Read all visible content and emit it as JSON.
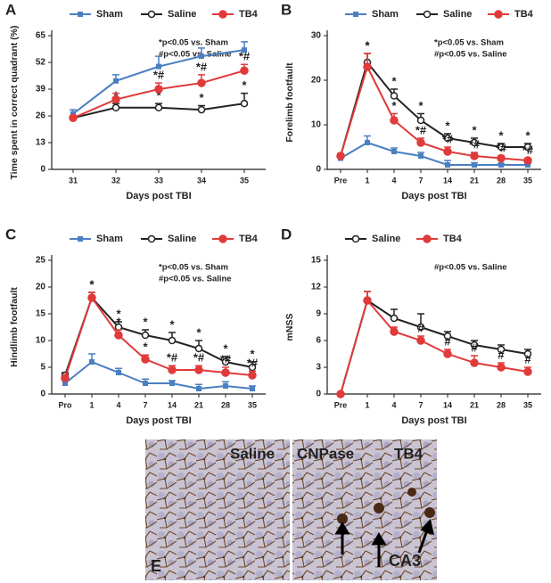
{
  "chart_data": [
    {
      "type": "line",
      "panel": "A",
      "y_label": "Time spent in correct quadrant (%)",
      "x_label": "Days post TBI",
      "categories": [
        "31",
        "32",
        "33",
        "34",
        "35"
      ],
      "ylim": [
        0,
        65
      ],
      "yticks": [
        0,
        13,
        26,
        39,
        52,
        65
      ],
      "notes": [
        "*p<0.05 vs. Sham",
        "#p<0.05 vs. Saline"
      ],
      "series": [
        {
          "name": "Sham",
          "color": "#4a7fc1",
          "marker": "square",
          "values": [
            27,
            43,
            50,
            55,
            58
          ],
          "errors": [
            2,
            3,
            5,
            4,
            4
          ],
          "markers": [
            null,
            null,
            null,
            null,
            null
          ]
        },
        {
          "name": "Saline",
          "color": "#222222",
          "marker": "open-circle",
          "values": [
            25,
            30,
            30,
            29,
            32
          ],
          "errors": [
            1,
            2,
            2,
            2,
            5
          ],
          "markers": [
            null,
            "*",
            "*",
            "*",
            "*"
          ]
        },
        {
          "name": "TB4",
          "color": "#e03a3a",
          "marker": "circle",
          "values": [
            25,
            34,
            39,
            42,
            48
          ],
          "errors": [
            1,
            3,
            3,
            4,
            3
          ],
          "markers": [
            null,
            null,
            "*#",
            "*#",
            "*#"
          ]
        }
      ]
    },
    {
      "type": "line",
      "panel": "B",
      "y_label": "Forelimb footfault",
      "x_label": "Days post TBI",
      "categories": [
        "Pre",
        "1",
        "4",
        "7",
        "14",
        "21",
        "28",
        "35"
      ],
      "ylim": [
        0,
        30
      ],
      "yticks": [
        0,
        10,
        20,
        30
      ],
      "notes": [
        "*p<0.05 vs. Sham",
        "#p<0.05 vs. Saline"
      ],
      "series": [
        {
          "name": "Sham",
          "color": "#4a7fc1",
          "marker": "square",
          "values": [
            2.5,
            6,
            4,
            3,
            1,
            1,
            1,
            1
          ],
          "errors": [
            0.5,
            1.5,
            0.8,
            0.8,
            1,
            0.5,
            0.3,
            0.3
          ],
          "markers": [
            null,
            null,
            null,
            null,
            null,
            null,
            null,
            null
          ]
        },
        {
          "name": "Saline",
          "color": "#222222",
          "marker": "open-circle",
          "values": [
            3,
            24,
            16.5,
            11,
            7,
            6,
            5,
            5
          ],
          "errors": [
            0.5,
            2,
            1.5,
            1.5,
            1,
            1,
            0.8,
            0.8
          ],
          "markers": [
            null,
            "*",
            "*",
            "*",
            "*",
            "*",
            "*",
            "*"
          ]
        },
        {
          "name": "TB4",
          "color": "#e03a3a",
          "marker": "circle",
          "values": [
            3,
            23,
            11,
            6,
            4,
            3,
            2.5,
            2
          ],
          "errors": [
            0.5,
            3,
            1.5,
            1,
            1,
            0.8,
            0.5,
            0.5
          ],
          "markers": [
            null,
            "*",
            "*",
            "*#",
            "*#",
            "*#",
            "*#",
            "*#"
          ]
        }
      ]
    },
    {
      "type": "line",
      "panel": "C",
      "y_label": "Hindlimb footfault",
      "x_label": "Days post TBI",
      "categories": [
        "Pro",
        "1",
        "4",
        "7",
        "14",
        "21",
        "28",
        "35"
      ],
      "ylim": [
        0,
        25
      ],
      "yticks": [
        0,
        5,
        10,
        15,
        20,
        25
      ],
      "notes": [
        "*p<0.05 vs. Sham",
        "#p<0.05 vs. Saline"
      ],
      "series": [
        {
          "name": "Sham",
          "color": "#4a7fc1",
          "marker": "square",
          "values": [
            2,
            6,
            4,
            2,
            2,
            1,
            1.5,
            1
          ],
          "errors": [
            0.5,
            1.5,
            0.8,
            0.8,
            0.5,
            0.8,
            0.8,
            0.5
          ],
          "markers": [
            null,
            null,
            null,
            null,
            null,
            null,
            null,
            null
          ]
        },
        {
          "name": "Saline",
          "color": "#222222",
          "marker": "open-circle",
          "values": [
            3.5,
            18,
            12.5,
            11,
            10,
            8.5,
            6,
            5
          ],
          "errors": [
            0.5,
            1,
            1,
            1,
            1.5,
            1.5,
            1,
            1
          ],
          "markers": [
            null,
            "*",
            "*",
            "*",
            "*",
            "*",
            "*",
            "*"
          ]
        },
        {
          "name": "TB4",
          "color": "#e03a3a",
          "marker": "circle",
          "values": [
            3,
            18,
            11,
            6.5,
            4.5,
            4.5,
            4,
            3.5
          ],
          "errors": [
            0.5,
            1,
            1,
            0.8,
            0.8,
            0.8,
            1,
            0.8
          ],
          "markers": [
            null,
            "*",
            "*",
            "*",
            "*#",
            "*#",
            "*#",
            "*#"
          ]
        }
      ]
    },
    {
      "type": "line",
      "panel": "D",
      "y_label": "mNSS",
      "x_label": "Days post TBI",
      "categories": [
        "Pre",
        "1",
        "4",
        "7",
        "14",
        "21",
        "28",
        "35"
      ],
      "ylim": [
        0,
        15
      ],
      "yticks": [
        0,
        3,
        6,
        9,
        12,
        15
      ],
      "notes": [
        "#p<0.05 vs. Saline"
      ],
      "series": [
        {
          "name": "Saline",
          "color": "#222222",
          "marker": "open-circle",
          "values": [
            0,
            10.5,
            8.5,
            7.5,
            6.5,
            5.5,
            5,
            4.5
          ],
          "errors": [
            0,
            1,
            1,
            1.5,
            0.5,
            0.5,
            0.5,
            0.5
          ],
          "markers": [
            null,
            null,
            null,
            null,
            null,
            null,
            null,
            null
          ]
        },
        {
          "name": "TB4",
          "color": "#e03a3a",
          "marker": "circle",
          "values": [
            0,
            10.5,
            7,
            6,
            4.5,
            3.5,
            3,
            2.5
          ],
          "errors": [
            0,
            1,
            0.5,
            0.5,
            0.5,
            0.8,
            0.5,
            0.5
          ],
          "markers": [
            null,
            null,
            null,
            "#",
            "#",
            "#",
            "#",
            "#"
          ]
        }
      ]
    }
  ],
  "panel_e": {
    "panel": "E",
    "left_label": "Saline",
    "stain_label": "CNPase",
    "right_label": "TB4",
    "region_label": "CA3"
  }
}
